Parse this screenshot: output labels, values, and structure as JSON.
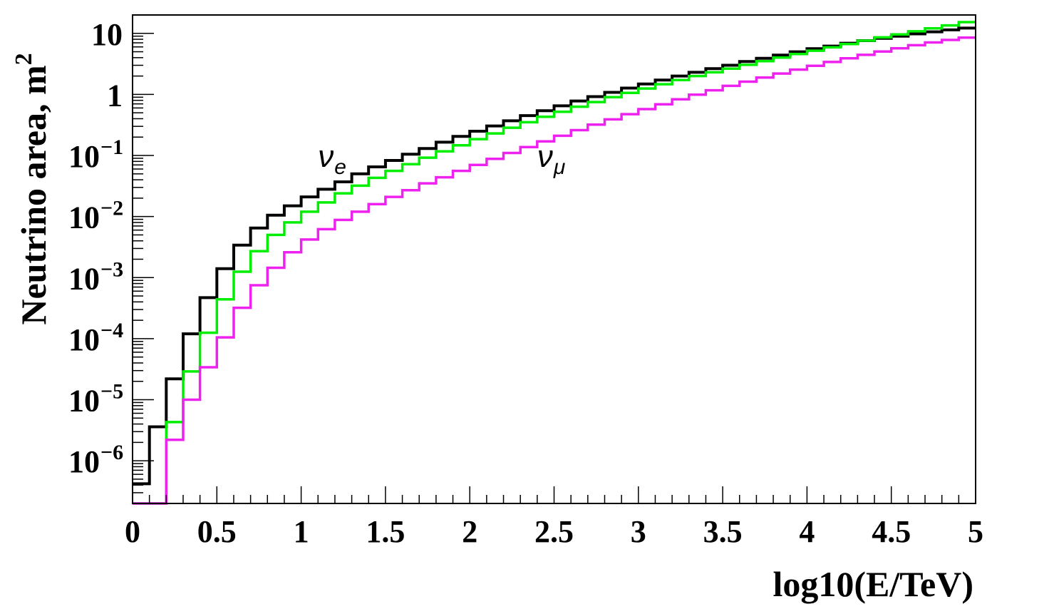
{
  "chart_data": {
    "type": "line",
    "style": "step-histogram",
    "xlabel": "log10(E/TeV)",
    "ylabel": "Neutrino area, m",
    "ylabel_sup": "2",
    "xlim": [
      0,
      5
    ],
    "ylim": [
      2e-07,
      20
    ],
    "yscale": "log",
    "grid": false,
    "bin_width": 0.1,
    "x_ticks": [
      "0",
      "0.5",
      "1",
      "1.5",
      "2",
      "2.5",
      "3",
      "3.5",
      "4",
      "4.5",
      "5"
    ],
    "y_ticks": [
      {
        "value": 10,
        "base": "10",
        "exp": ""
      },
      {
        "value": 1,
        "base": "1",
        "exp": ""
      },
      {
        "value": 0.1,
        "base": "10",
        "exp": "−1"
      },
      {
        "value": 0.01,
        "base": "10",
        "exp": "−2"
      },
      {
        "value": 0.001,
        "base": "10",
        "exp": "−3"
      },
      {
        "value": 0.0001,
        "base": "10",
        "exp": "−4"
      },
      {
        "value": 1e-05,
        "base": "10",
        "exp": "−5"
      },
      {
        "value": 1e-06,
        "base": "10",
        "exp": "−6"
      }
    ],
    "annotations": [
      {
        "symbol": "ν",
        "sub": "e",
        "x": 1.1,
        "y": 0.09
      },
      {
        "symbol": "ν",
        "sub": "μ",
        "x": 2.4,
        "y": 0.09
      }
    ],
    "series": [
      {
        "color": "#000000",
        "values": [
          4.2e-07,
          3.6e-06,
          2.2e-05,
          0.00012,
          0.00047,
          0.0014,
          0.0034,
          0.0065,
          0.0105,
          0.015,
          0.021,
          0.028,
          0.037,
          0.05,
          0.065,
          0.083,
          0.105,
          0.13,
          0.165,
          0.205,
          0.25,
          0.305,
          0.37,
          0.45,
          0.54,
          0.65,
          0.78,
          0.92,
          1.08,
          1.27,
          1.48,
          1.72,
          2.0,
          2.3,
          2.65,
          3.0,
          3.45,
          3.9,
          4.4,
          5.0,
          5.6,
          6.2,
          6.9,
          7.6,
          8.3,
          9.0,
          9.8,
          10.6,
          11.4,
          12.2
        ]
      },
      {
        "color": "#00ee00",
        "values": [
          2e-07,
          2e-07,
          4.3e-06,
          2.9e-05,
          0.000125,
          0.00044,
          0.00125,
          0.0027,
          0.005,
          0.008,
          0.012,
          0.017,
          0.024,
          0.032,
          0.043,
          0.056,
          0.072,
          0.092,
          0.117,
          0.147,
          0.185,
          0.23,
          0.285,
          0.35,
          0.43,
          0.52,
          0.63,
          0.75,
          0.9,
          1.06,
          1.25,
          1.47,
          1.72,
          2.0,
          2.3,
          2.65,
          3.05,
          3.5,
          4.0,
          4.6,
          5.2,
          5.9,
          6.7,
          7.6,
          8.6,
          9.6,
          10.8,
          12.1,
          13.5,
          15.3
        ]
      },
      {
        "color": "#ee22ee",
        "values": [
          2e-07,
          2e-07,
          2.2e-06,
          1e-05,
          3.4e-05,
          0.000105,
          0.00032,
          0.00075,
          0.00145,
          0.0026,
          0.0042,
          0.0062,
          0.0088,
          0.012,
          0.016,
          0.021,
          0.027,
          0.035,
          0.044,
          0.056,
          0.07,
          0.088,
          0.11,
          0.137,
          0.17,
          0.21,
          0.26,
          0.32,
          0.39,
          0.475,
          0.575,
          0.69,
          0.83,
          0.99,
          1.17,
          1.38,
          1.62,
          1.89,
          2.2,
          2.55,
          2.95,
          3.4,
          3.9,
          4.45,
          5.05,
          5.7,
          6.4,
          7.1,
          7.8,
          8.5
        ]
      }
    ]
  }
}
